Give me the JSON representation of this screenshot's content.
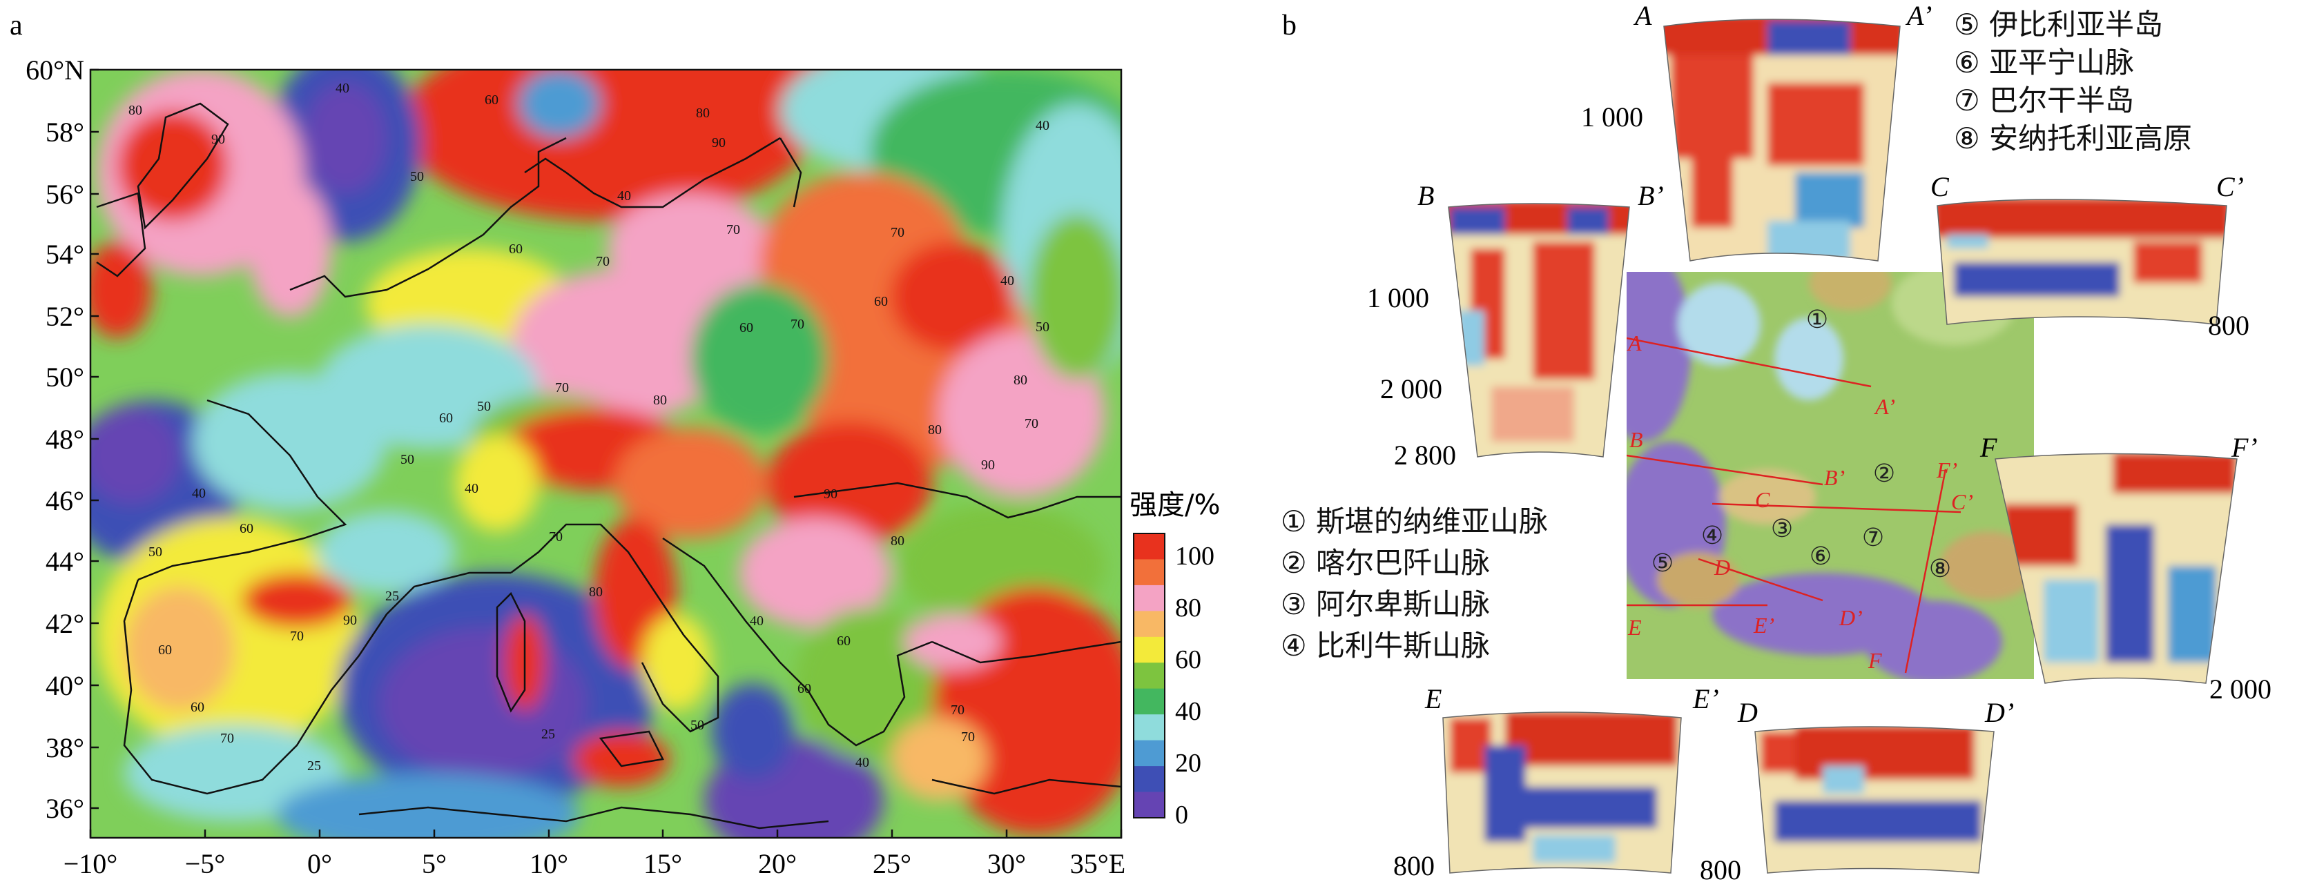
{
  "panel_a": {
    "label": "a",
    "lat_labels": [
      "60°N",
      "58°",
      "56°",
      "54°",
      "52°",
      "50°",
      "48°",
      "46°",
      "44°",
      "42°",
      "40°",
      "38°",
      "36°"
    ],
    "lon_labels": [
      "−10°",
      "−5°",
      "0°",
      "5°",
      "10°",
      "15°",
      "20°",
      "25°",
      "30°",
      "35°E"
    ],
    "contour_labels": [
      "80",
      "90",
      "40",
      "60",
      "50",
      "40",
      "80",
      "90",
      "70",
      "40",
      "70",
      "40",
      "60",
      "50",
      "70",
      "60",
      "80",
      "60",
      "70",
      "80",
      "70",
      "50",
      "60",
      "50",
      "80",
      "90",
      "90",
      "40",
      "70",
      "80",
      "40",
      "50",
      "60",
      "70",
      "90",
      "70",
      "25",
      "25",
      "50",
      "60",
      "70",
      "40",
      "60",
      "60",
      "70",
      "80",
      "25",
      "40",
      "70",
      "60"
    ],
    "legend_title": "强度/%",
    "legend_ticks": [
      "100",
      "80",
      "60",
      "40",
      "20",
      "0"
    ],
    "legend_colors": [
      "#e8321e",
      "#f2703a",
      "#f4a3c4",
      "#f8b865",
      "#f3ea3a",
      "#7dc43f",
      "#43b75f",
      "#8fdcdc",
      "#4e9bd3",
      "#3e4fb5",
      "#6544b3"
    ]
  },
  "panel_b": {
    "label": "b",
    "legend_items": [
      "① 斯堪的纳维亚山脉",
      "② 喀尔巴阡山脉",
      "③ 阿尔卑斯山脉",
      "④ 比利牛斯山脉",
      "⑤ 伊比利亚半岛",
      "⑥ 亚平宁山脉",
      "⑦ 巴尔干半岛",
      "⑧ 安纳托利亚高原"
    ],
    "sections": [
      {
        "start": "A",
        "end": "A’",
        "depth_labels": [
          "1 000"
        ]
      },
      {
        "start": "B",
        "end": "B’",
        "depth_labels": [
          "1 000",
          "2 000",
          "2 800"
        ]
      },
      {
        "start": "C",
        "end": "C’",
        "depth_labels": [
          "800"
        ]
      },
      {
        "start": "F",
        "end": "F’",
        "depth_labels": [
          "2 000"
        ]
      },
      {
        "start": "E",
        "end": "E’",
        "depth_labels": [
          "800"
        ]
      },
      {
        "start": "D",
        "end": "D’",
        "depth_labels": [
          "800"
        ]
      }
    ],
    "map_line_labels": [
      "A",
      "A’",
      "B",
      "B’",
      "C",
      "C’",
      "D",
      "D’",
      "E",
      "E’",
      "F",
      "F’"
    ],
    "map_region_numbers": [
      "①",
      "②",
      "③",
      "④",
      "⑤",
      "⑥",
      "⑦",
      "⑧"
    ]
  }
}
